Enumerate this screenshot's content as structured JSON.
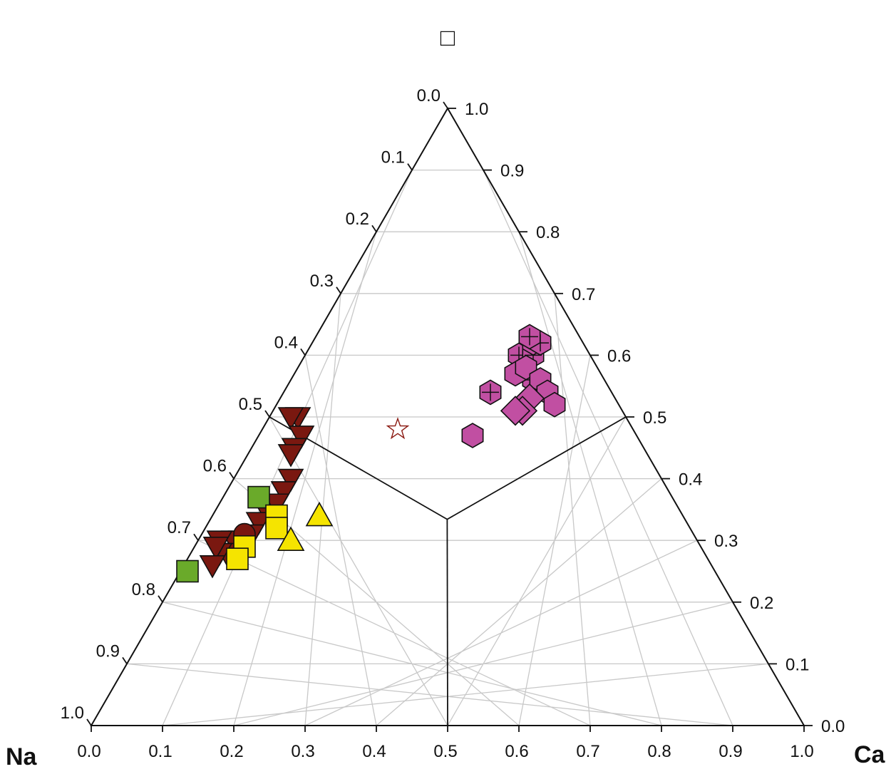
{
  "chart_data": {
    "type": "scatter",
    "subtype": "ternary",
    "corner_labels": {
      "top": "□",
      "bottom_left": "Na",
      "bottom_right": "Ca"
    },
    "axes": {
      "bottom": {
        "ticks": [
          "0.0",
          "0.1",
          "0.2",
          "0.3",
          "0.4",
          "0.5",
          "0.6",
          "0.7",
          "0.8",
          "0.9",
          "1.0"
        ]
      },
      "left": {
        "ticks": [
          "0.0",
          "0.1",
          "0.2",
          "0.3",
          "0.4",
          "0.5",
          "0.6",
          "0.7",
          "0.8",
          "0.9",
          "1.0"
        ]
      },
      "right": {
        "ticks": [
          "0.0",
          "0.1",
          "0.2",
          "0.3",
          "0.4",
          "0.5",
          "0.6",
          "0.7",
          "0.8",
          "0.9",
          "1.0"
        ]
      }
    },
    "grid": true,
    "grid_color": "#c8c8c8",
    "field_boundaries": [
      {
        "from": [
          0.5,
          0.5,
          0.0
        ],
        "to": [
          0.333,
          0.333,
          0.333
        ]
      },
      {
        "from": [
          0.0,
          0.5,
          0.5
        ],
        "to": [
          0.333,
          0.333,
          0.333
        ]
      },
      {
        "from": [
          0.5,
          0.0,
          0.5
        ],
        "to": [
          0.333,
          0.333,
          0.333
        ]
      }
    ],
    "series": [
      {
        "marker": "hexagon-cross",
        "color": "#c14fa2",
        "stroke": "#111111",
        "points": [
          {
            "na": 0.1,
            "ca": 0.3,
            "vac": 0.6
          },
          {
            "na": 0.08,
            "ca": 0.32,
            "vac": 0.6
          },
          {
            "na": 0.07,
            "ca": 0.31,
            "vac": 0.62
          },
          {
            "na": 0.06,
            "ca": 0.32,
            "vac": 0.62
          },
          {
            "na": 0.07,
            "ca": 0.3,
            "vac": 0.63
          },
          {
            "na": 0.17,
            "ca": 0.29,
            "vac": 0.54
          },
          {
            "na": 0.1,
            "ca": 0.34,
            "vac": 0.56
          }
        ]
      },
      {
        "marker": "hexagon",
        "color": "#c14fa2",
        "stroke": "#111111",
        "points": [
          {
            "na": 0.12,
            "ca": 0.31,
            "vac": 0.57
          },
          {
            "na": 0.1,
            "ca": 0.32,
            "vac": 0.58
          },
          {
            "na": 0.09,
            "ca": 0.35,
            "vac": 0.56
          },
          {
            "na": 0.09,
            "ca": 0.37,
            "vac": 0.54
          },
          {
            "na": 0.09,
            "ca": 0.39,
            "vac": 0.52
          },
          {
            "na": 0.23,
            "ca": 0.3,
            "vac": 0.47
          }
        ]
      },
      {
        "marker": "diamond",
        "color": "#c14fa2",
        "stroke": "#111111",
        "points": [
          {
            "na": 0.12,
            "ca": 0.35,
            "vac": 0.53
          },
          {
            "na": 0.14,
            "ca": 0.35,
            "vac": 0.51
          },
          {
            "na": 0.15,
            "ca": 0.34,
            "vac": 0.51
          }
        ]
      },
      {
        "marker": "star",
        "color": "#ffffff",
        "stroke": "#8b1a12",
        "points": [
          {
            "na": 0.33,
            "ca": 0.19,
            "vac": 0.48
          }
        ]
      },
      {
        "marker": "triangle-down",
        "color": "#7a1810",
        "stroke": "#111111",
        "points": [
          {
            "na": 0.46,
            "ca": 0.04,
            "vac": 0.5
          },
          {
            "na": 0.47,
            "ca": 0.03,
            "vac": 0.5
          },
          {
            "na": 0.47,
            "ca": 0.06,
            "vac": 0.47
          },
          {
            "na": 0.49,
            "ca": 0.06,
            "vac": 0.45
          },
          {
            "na": 0.5,
            "ca": 0.06,
            "vac": 0.44
          },
          {
            "na": 0.52,
            "ca": 0.08,
            "vac": 0.4
          },
          {
            "na": 0.54,
            "ca": 0.08,
            "vac": 0.38
          },
          {
            "na": 0.56,
            "ca": 0.08,
            "vac": 0.36
          },
          {
            "na": 0.58,
            "ca": 0.08,
            "vac": 0.34
          },
          {
            "na": 0.6,
            "ca": 0.07,
            "vac": 0.33
          },
          {
            "na": 0.62,
            "ca": 0.07,
            "vac": 0.31
          },
          {
            "na": 0.64,
            "ca": 0.06,
            "vac": 0.3
          },
          {
            "na": 0.65,
            "ca": 0.05,
            "vac": 0.3
          },
          {
            "na": 0.67,
            "ca": 0.05,
            "vac": 0.28
          },
          {
            "na": 0.68,
            "ca": 0.04,
            "vac": 0.28
          },
          {
            "na": 0.67,
            "ca": 0.03,
            "vac": 0.3
          },
          {
            "na": 0.68,
            "ca": 0.03,
            "vac": 0.29
          },
          {
            "na": 0.7,
            "ca": 0.04,
            "vac": 0.26
          }
        ]
      },
      {
        "marker": "circle",
        "color": "#7a1810",
        "stroke": "#111111",
        "points": [
          {
            "na": 0.63,
            "ca": 0.06,
            "vac": 0.31
          }
        ]
      },
      {
        "marker": "square",
        "color": "#6aaa2a",
        "stroke": "#111111",
        "points": [
          {
            "na": 0.58,
            "ca": 0.05,
            "vac": 0.37
          },
          {
            "na": 0.74,
            "ca": 0.01,
            "vac": 0.25
          }
        ]
      },
      {
        "marker": "square",
        "color": "#f5e400",
        "stroke": "#111111",
        "points": [
          {
            "na": 0.57,
            "ca": 0.09,
            "vac": 0.34
          },
          {
            "na": 0.58,
            "ca": 0.1,
            "vac": 0.32
          },
          {
            "na": 0.64,
            "ca": 0.07,
            "vac": 0.29
          },
          {
            "na": 0.66,
            "ca": 0.07,
            "vac": 0.27
          }
        ]
      },
      {
        "marker": "triangle-up",
        "color": "#f5e400",
        "stroke": "#111111",
        "points": [
          {
            "na": 0.51,
            "ca": 0.15,
            "vac": 0.34
          },
          {
            "na": 0.57,
            "ca": 0.13,
            "vac": 0.3
          }
        ]
      }
    ]
  }
}
